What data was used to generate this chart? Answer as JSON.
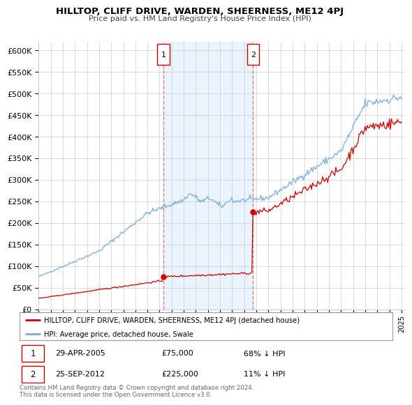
{
  "title": "HILLTOP, CLIFF DRIVE, WARDEN, SHEERNESS, ME12 4PJ",
  "subtitle": "Price paid vs. HM Land Registry's House Price Index (HPI)",
  "ylim": [
    0,
    620000
  ],
  "yticks": [
    0,
    50000,
    100000,
    150000,
    200000,
    250000,
    300000,
    350000,
    400000,
    450000,
    500000,
    550000,
    600000
  ],
  "xlim_start": 1995.0,
  "xlim_end": 2025.3,
  "legend_label_red": "HILLTOP, CLIFF DRIVE, WARDEN, SHEERNESS, ME12 4PJ (detached house)",
  "legend_label_blue": "HPI: Average price, detached house, Swale",
  "transaction1_date": "29-APR-2005",
  "transaction1_price": "£75,000",
  "transaction1_hpi": "68% ↓ HPI",
  "transaction1_year": 2005.31,
  "transaction1_value": 75000,
  "transaction2_date": "25-SEP-2012",
  "transaction2_price": "£225,000",
  "transaction2_hpi": "11% ↓ HPI",
  "transaction2_year": 2012.73,
  "transaction2_value": 225000,
  "footer": "Contains HM Land Registry data © Crown copyright and database right 2024.\nThis data is licensed under the Open Government Licence v3.0.",
  "red_color": "#cc0000",
  "blue_color": "#7aaddb",
  "shade_color": "#ddeeff",
  "bg_color": "#ffffff",
  "grid_color": "#cccccc",
  "vline_color": "#e08080"
}
